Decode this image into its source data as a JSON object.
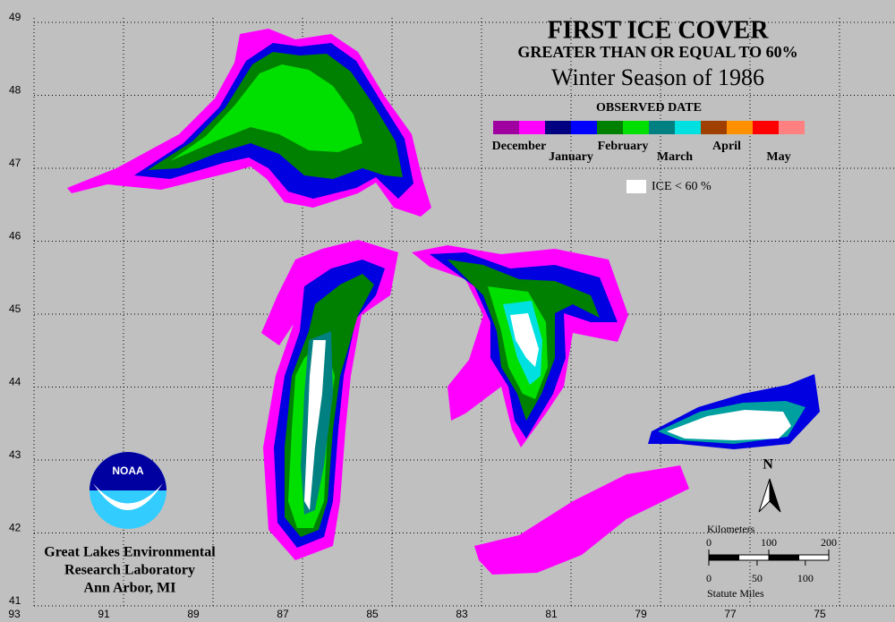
{
  "header": {
    "title": "FIRST ICE COVER",
    "subtitle": "GREATER THAN OR EQUAL TO 60%",
    "season": "Winter Season of 1986"
  },
  "legend": {
    "title": "OBSERVED DATE",
    "items": [
      {
        "label": "December",
        "colors": [
          "#a000a0",
          "#ff00ff"
        ]
      },
      {
        "label": "January",
        "colors": [
          "#000080",
          "#0000ff"
        ]
      },
      {
        "label": "February",
        "colors": [
          "#008000",
          "#00e000"
        ]
      },
      {
        "label": "March",
        "colors": [
          "#008080",
          "#00e0e0"
        ]
      },
      {
        "label": "April",
        "colors": [
          "#a04000",
          "#ff9000"
        ]
      },
      {
        "label": "May",
        "colors": [
          "#ff0000",
          "#ff8080"
        ]
      }
    ],
    "ice_label": "ICE < 60 %",
    "ice_color": "#ffffff"
  },
  "grid": {
    "lat": [
      49,
      48,
      47,
      46,
      45,
      44,
      43,
      42,
      41
    ],
    "lon": [
      93,
      91,
      89,
      87,
      85,
      83,
      81,
      79,
      77,
      75
    ]
  },
  "scale": {
    "km_label": "Kilometers",
    "km_ticks": [
      0,
      100,
      200
    ],
    "mile_label": "Statute Miles",
    "mile_ticks": [
      0,
      50,
      100
    ]
  },
  "north": "N",
  "logo": "NOAA",
  "credit": [
    "Great Lakes Environmental",
    "Research Laboratory",
    "Ann Arbor, MI"
  ]
}
